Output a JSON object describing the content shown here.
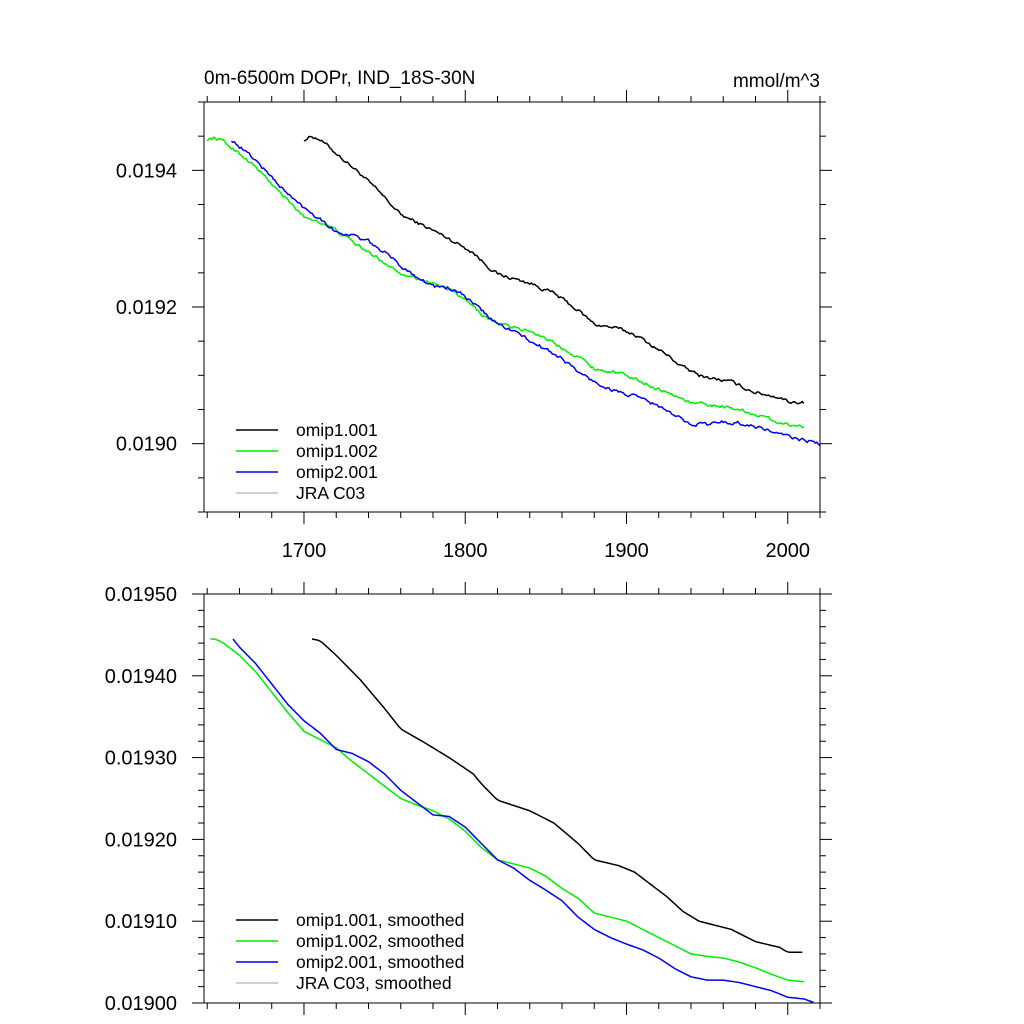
{
  "chart_data": [
    {
      "type": "line",
      "title": "0m-6500m DOPr, IND_18S-30N",
      "units": "mmol/m^3",
      "xlim": [
        1638,
        2020
      ],
      "ylim": [
        0.0189,
        0.0195
      ],
      "xticks": [
        1700,
        1800,
        1900,
        2000
      ],
      "xtick_labels": [
        "1700",
        "1800",
        "1900",
        "2000"
      ],
      "yticks": [
        0.019,
        0.0192,
        0.0194
      ],
      "ytick_labels": [
        "0.0190",
        "0.0192",
        "0.0194"
      ],
      "legend_position": "bottom-left",
      "series": [
        {
          "name": "omip1.001",
          "color": "#000000",
          "noise": 2.2e-06,
          "x": [
            1700,
            1705,
            1710,
            1720,
            1735,
            1750,
            1760,
            1775,
            1790,
            1805,
            1810,
            1820,
            1840,
            1855,
            1870,
            1880,
            1895,
            1905,
            1915,
            1925,
            1935,
            1945,
            1955,
            1965,
            1980,
            1995,
            2000,
            2010
          ],
          "y": [
            0.019445,
            0.01945,
            0.019445,
            0.019425,
            0.019395,
            0.01936,
            0.019335,
            0.019318,
            0.0193,
            0.01928,
            0.019268,
            0.019248,
            0.019235,
            0.01922,
            0.019195,
            0.019175,
            0.019168,
            0.01916,
            0.019145,
            0.01913,
            0.019112,
            0.0191,
            0.019095,
            0.01909,
            0.019075,
            0.019068,
            0.019062,
            0.01906
          ]
        },
        {
          "name": "omip1.002",
          "color": "#00ee00",
          "noise": 2.2e-06,
          "x": [
            1640,
            1645,
            1650,
            1660,
            1670,
            1680,
            1690,
            1700,
            1710,
            1720,
            1730,
            1740,
            1750,
            1760,
            1770,
            1780,
            1790,
            1800,
            1810,
            1820,
            1830,
            1840,
            1850,
            1860,
            1870,
            1880,
            1890,
            1900,
            1910,
            1920,
            1930,
            1940,
            1950,
            1960,
            1970,
            1980,
            1990,
            2000,
            2010
          ],
          "y": [
            0.019445,
            0.019448,
            0.019442,
            0.019425,
            0.019405,
            0.01938,
            0.019355,
            0.019332,
            0.019325,
            0.019312,
            0.019295,
            0.01928,
            0.019265,
            0.01925,
            0.019242,
            0.019235,
            0.019225,
            0.01921,
            0.01919,
            0.019175,
            0.01917,
            0.019165,
            0.019155,
            0.01914,
            0.019128,
            0.01911,
            0.019105,
            0.0191,
            0.01909,
            0.01908,
            0.01907,
            0.01906,
            0.019057,
            0.019055,
            0.01905,
            0.019043,
            0.019035,
            0.019028,
            0.019025
          ]
        },
        {
          "name": "omip2.001",
          "color": "#0000ee",
          "noise": 2.4e-06,
          "x": [
            1655,
            1660,
            1670,
            1680,
            1690,
            1700,
            1710,
            1720,
            1730,
            1740,
            1750,
            1760,
            1770,
            1780,
            1790,
            1800,
            1810,
            1820,
            1830,
            1840,
            1850,
            1860,
            1870,
            1880,
            1890,
            1900,
            1910,
            1920,
            1930,
            1940,
            1950,
            1960,
            1970,
            1980,
            1990,
            2000,
            2010,
            2020
          ],
          "y": [
            0.019445,
            0.019435,
            0.019415,
            0.01939,
            0.019365,
            0.019345,
            0.01933,
            0.01931,
            0.019305,
            0.019295,
            0.01928,
            0.01926,
            0.019245,
            0.01923,
            0.019228,
            0.019215,
            0.019195,
            0.019175,
            0.019165,
            0.01915,
            0.019138,
            0.019125,
            0.019105,
            0.01909,
            0.01908,
            0.019072,
            0.019065,
            0.019055,
            0.01904,
            0.01903,
            0.019028,
            0.019032,
            0.01903,
            0.019025,
            0.019018,
            0.01901,
            0.019005,
            0.019
          ]
        },
        {
          "name": "JRA C03",
          "color": "#c0c0c0",
          "x": [],
          "y": []
        }
      ]
    },
    {
      "type": "line",
      "title": "",
      "xlim": [
        1638,
        2020
      ],
      "ylim": [
        0.019,
        0.0195
      ],
      "xticks": [
        1700,
        1800,
        1900,
        2000
      ],
      "yticks": [
        0.019,
        0.0191,
        0.0192,
        0.0193,
        0.0194,
        0.0195
      ],
      "ytick_labels": [
        "0.01900",
        "0.01910",
        "0.01920",
        "0.01930",
        "0.01940",
        "0.01950"
      ],
      "legend_position": "bottom-left",
      "series": [
        {
          "name": "omip1.001, smoothed",
          "color": "#000000",
          "x": [
            1705,
            1710,
            1720,
            1735,
            1750,
            1760,
            1775,
            1790,
            1805,
            1810,
            1820,
            1840,
            1855,
            1870,
            1880,
            1895,
            1905,
            1915,
            1925,
            1935,
            1945,
            1955,
            1965,
            1980,
            1995,
            2000,
            2010
          ],
          "y": [
            0.019445,
            0.019443,
            0.019425,
            0.019395,
            0.01936,
            0.019335,
            0.019318,
            0.0193,
            0.01928,
            0.019268,
            0.019248,
            0.019235,
            0.01922,
            0.019195,
            0.019175,
            0.019168,
            0.01916,
            0.019145,
            0.01913,
            0.019112,
            0.0191,
            0.019095,
            0.01909,
            0.019075,
            0.019068,
            0.019062,
            0.019062
          ]
        },
        {
          "name": "omip1.002, smoothed",
          "color": "#00ee00",
          "x": [
            1642,
            1645,
            1650,
            1660,
            1670,
            1680,
            1690,
            1700,
            1710,
            1720,
            1730,
            1740,
            1750,
            1760,
            1770,
            1780,
            1790,
            1800,
            1810,
            1820,
            1830,
            1840,
            1850,
            1860,
            1870,
            1880,
            1890,
            1900,
            1910,
            1920,
            1930,
            1940,
            1950,
            1960,
            1970,
            1980,
            1990,
            2000,
            2010
          ],
          "y": [
            0.019445,
            0.019445,
            0.01944,
            0.019425,
            0.019405,
            0.01938,
            0.019355,
            0.019332,
            0.019322,
            0.019312,
            0.019295,
            0.01928,
            0.019265,
            0.01925,
            0.019242,
            0.019235,
            0.019225,
            0.01921,
            0.01919,
            0.019175,
            0.01917,
            0.019165,
            0.019155,
            0.01914,
            0.019128,
            0.01911,
            0.019105,
            0.0191,
            0.01909,
            0.01908,
            0.01907,
            0.01906,
            0.019057,
            0.019055,
            0.01905,
            0.019043,
            0.019035,
            0.019028,
            0.019026
          ]
        },
        {
          "name": "omip2.001, smoothed",
          "color": "#0000ee",
          "x": [
            1656,
            1660,
            1670,
            1680,
            1690,
            1700,
            1710,
            1720,
            1730,
            1740,
            1750,
            1760,
            1770,
            1780,
            1790,
            1800,
            1810,
            1820,
            1830,
            1840,
            1850,
            1860,
            1870,
            1880,
            1890,
            1900,
            1910,
            1920,
            1930,
            1940,
            1950,
            1960,
            1970,
            1980,
            1990,
            2000,
            2010,
            2017
          ],
          "y": [
            0.019445,
            0.019435,
            0.019415,
            0.01939,
            0.019365,
            0.019345,
            0.01933,
            0.01931,
            0.019305,
            0.019295,
            0.01928,
            0.01926,
            0.019245,
            0.01923,
            0.019228,
            0.019215,
            0.019195,
            0.019175,
            0.019165,
            0.01915,
            0.019138,
            0.019125,
            0.019105,
            0.01909,
            0.01908,
            0.019072,
            0.019065,
            0.019055,
            0.019042,
            0.019032,
            0.019028,
            0.019028,
            0.019025,
            0.01902,
            0.019015,
            0.019007,
            0.019005,
            0.019
          ]
        },
        {
          "name": "JRA C03, smoothed",
          "color": "#c0c0c0",
          "x": [],
          "y": []
        }
      ]
    }
  ]
}
